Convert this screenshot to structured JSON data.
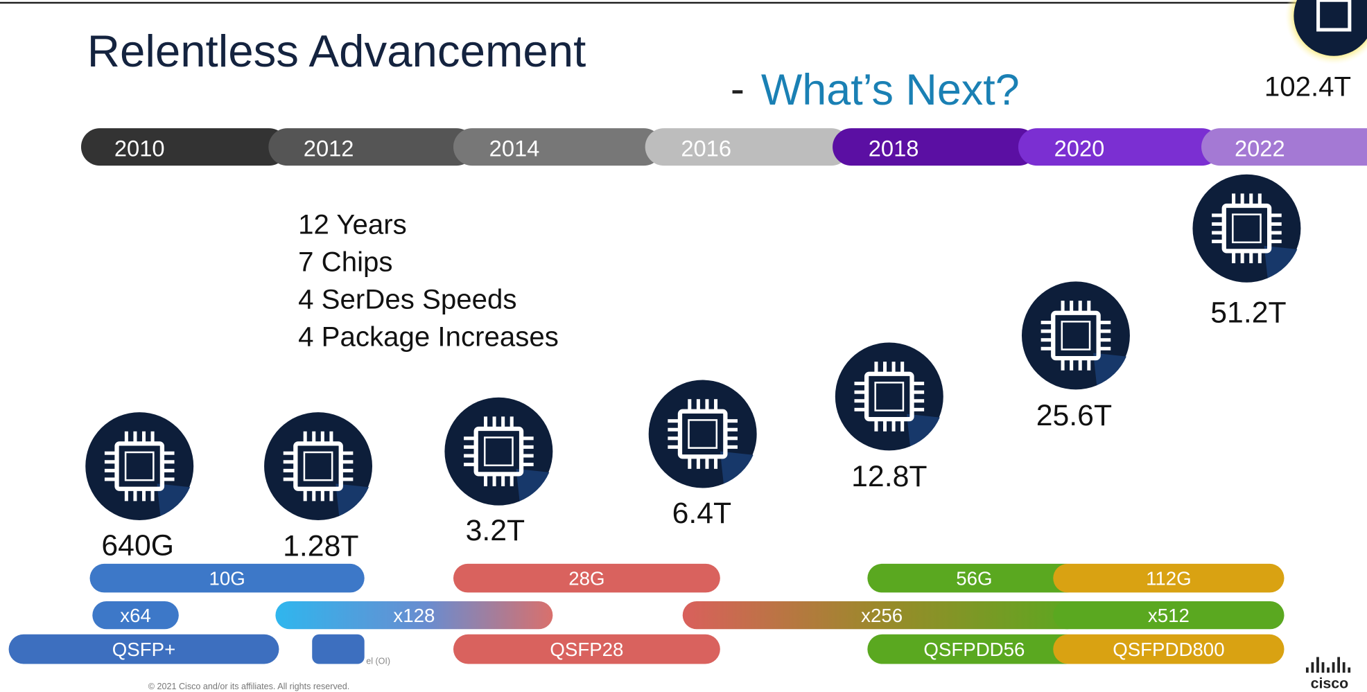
{
  "slide": {
    "title": "Relentless Advancement",
    "subtitle_dash": "-",
    "subtitle": "What’s Next?",
    "top_chip": "102.4T",
    "timeline": [
      "2010",
      "2012",
      "2014",
      "2016",
      "2018",
      "2020",
      "2022"
    ],
    "stats": [
      "12 Years",
      "7 Chips",
      "4 SerDes Speeds",
      "4 Package Increases"
    ],
    "chips": [
      "640G",
      "1.28T",
      "3.2T",
      "6.4T",
      "12.8T",
      "25.6T",
      "51.2T"
    ],
    "serdes": [
      "10G",
      "28G",
      "56G",
      "112G"
    ],
    "packages": [
      "x64",
      "x128",
      "x256",
      "x512"
    ],
    "optics": [
      "QSFP+",
      "QSFP28",
      "QSFPDD56",
      "QSFPDD800"
    ],
    "obscured_note": "el (OI)",
    "footer": "© 2021 Cisco and/or its affiliates. All rights reserved.",
    "logo": "cisco"
  }
}
